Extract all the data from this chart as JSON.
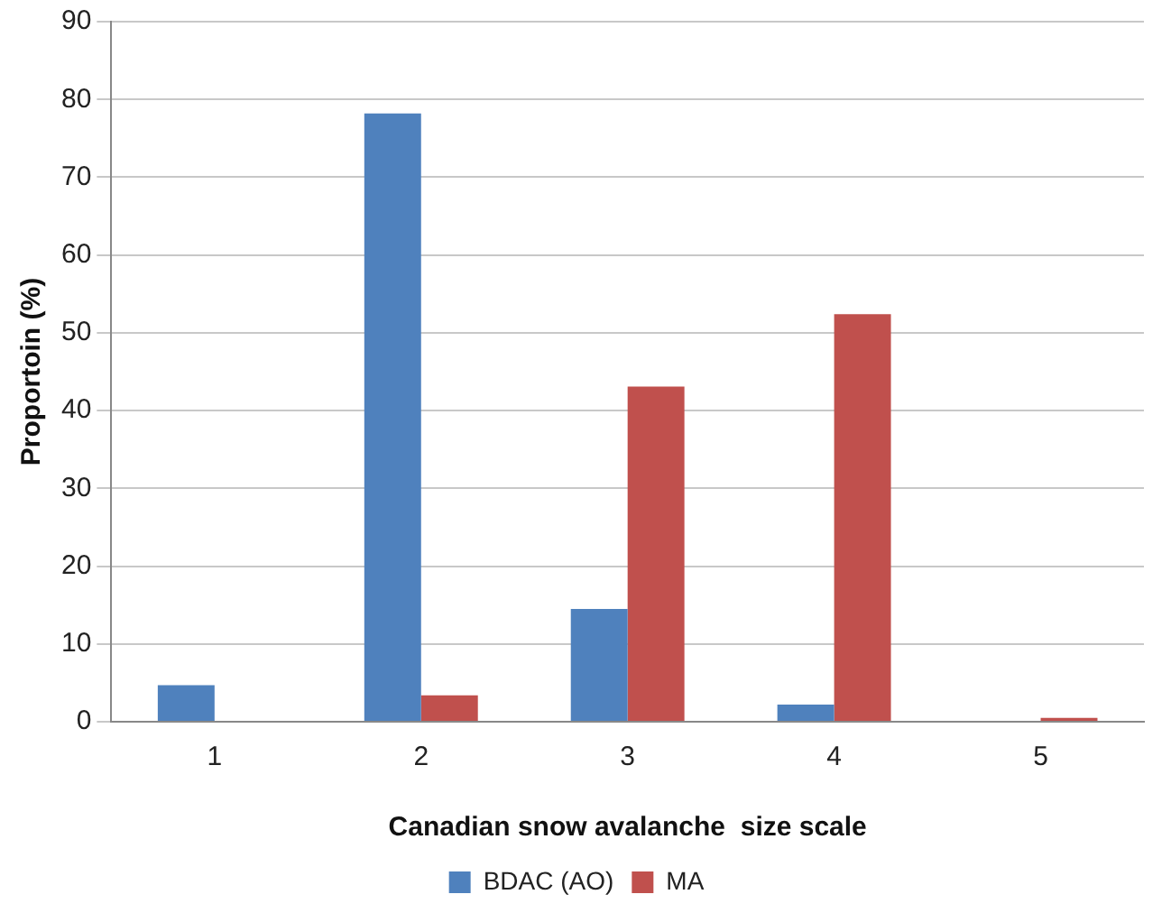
{
  "chart_data": {
    "type": "bar",
    "xlabel": "Canadian snow avalanche  size scale",
    "ylabel": "Proportoin (%)",
    "categories": [
      "1",
      "2",
      "3",
      "4",
      "5"
    ],
    "series": [
      {
        "name": "BDAC (AO)",
        "color": "#4f81bd",
        "values": [
          4.7,
          78.2,
          14.5,
          2.2,
          0
        ]
      },
      {
        "name": "MA",
        "color": "#c0504d",
        "values": [
          0,
          3.4,
          43.1,
          52.4,
          0.5
        ]
      }
    ],
    "ylim": [
      0,
      90
    ],
    "yticks": [
      0,
      10,
      20,
      30,
      40,
      50,
      60,
      70,
      80,
      90
    ],
    "grid": "y",
    "legend": "bottom"
  }
}
